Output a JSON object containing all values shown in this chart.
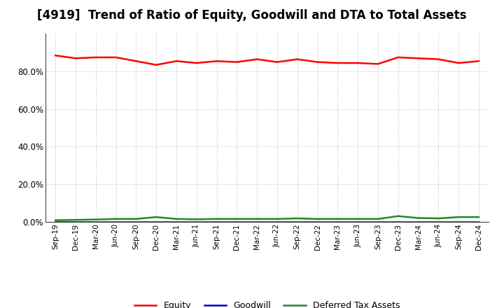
{
  "title": "[4919]  Trend of Ratio of Equity, Goodwill and DTA to Total Assets",
  "x_labels": [
    "Sep-19",
    "Dec-19",
    "Mar-20",
    "Jun-20",
    "Sep-20",
    "Dec-20",
    "Mar-21",
    "Jun-21",
    "Sep-21",
    "Dec-21",
    "Mar-22",
    "Jun-22",
    "Sep-22",
    "Dec-22",
    "Mar-23",
    "Jun-23",
    "Sep-23",
    "Dec-23",
    "Mar-24",
    "Jun-24",
    "Sep-24",
    "Dec-24"
  ],
  "equity": [
    88.5,
    87.0,
    87.5,
    87.5,
    85.5,
    83.5,
    85.5,
    84.5,
    85.5,
    85.0,
    86.5,
    85.0,
    86.5,
    85.0,
    84.5,
    84.5,
    84.0,
    87.5,
    87.0,
    86.5,
    84.5,
    85.5
  ],
  "goodwill": [
    0.0,
    0.0,
    0.0,
    0.0,
    0.0,
    0.0,
    0.0,
    0.0,
    0.0,
    0.0,
    0.0,
    0.0,
    0.0,
    0.0,
    0.0,
    0.0,
    0.0,
    0.0,
    0.0,
    0.0,
    0.0,
    0.0
  ],
  "dta": [
    0.8,
    1.0,
    1.2,
    1.5,
    1.5,
    2.5,
    1.5,
    1.3,
    1.5,
    1.5,
    1.5,
    1.5,
    1.8,
    1.5,
    1.5,
    1.5,
    1.5,
    3.0,
    2.0,
    1.8,
    2.5,
    2.5
  ],
  "equity_color": "#ff0000",
  "goodwill_color": "#0000cc",
  "dta_color": "#228822",
  "ylim": [
    0,
    100
  ],
  "yticks": [
    0,
    20,
    40,
    60,
    80
  ],
  "ytick_labels": [
    "0.0%",
    "20.0%",
    "40.0%",
    "60.0%",
    "80.0%"
  ],
  "background_color": "#ffffff",
  "grid_color": "#bbbbbb",
  "title_fontsize": 12,
  "legend_labels": [
    "Equity",
    "Goodwill",
    "Deferred Tax Assets"
  ]
}
